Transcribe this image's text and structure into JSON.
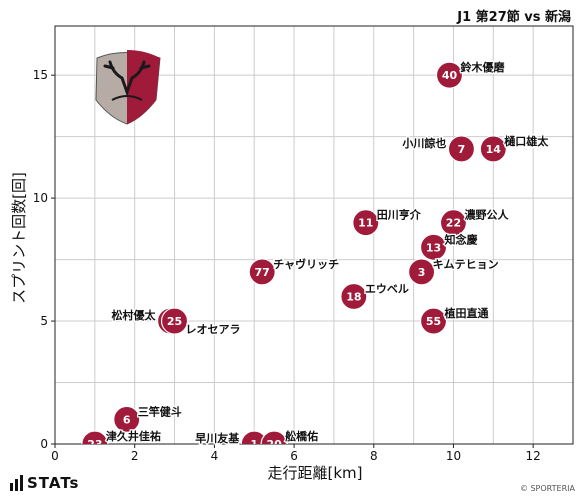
{
  "header": {
    "title": "J1 第27節 vs 新潟"
  },
  "branding": {
    "stats_logo": "STATs",
    "credit": "© SPORTERIA"
  },
  "colors": {
    "marker": "#a01a3a",
    "marker_stroke": "#ffffff",
    "grid": "#cccccc",
    "axis": "#222222"
  },
  "chart_data": {
    "type": "scatter",
    "title": "J1 第27節 vs 新潟",
    "xlabel": "走行距離[km]",
    "ylabel": "スプリント回数[回]",
    "xlim": [
      0,
      13
    ],
    "ylim": [
      0,
      17
    ],
    "xticks": [
      0,
      2,
      4,
      6,
      8,
      10,
      12
    ],
    "yticks": [
      0,
      5,
      10,
      15
    ],
    "grid": true,
    "points": [
      {
        "number": "40",
        "name": "鈴木優磨",
        "x": 9.9,
        "y": 15,
        "label_side": "right"
      },
      {
        "number": "7",
        "name": "小川諒也",
        "x": 10.2,
        "y": 12,
        "label_side": "left"
      },
      {
        "number": "14",
        "name": "樋口雄太",
        "x": 11.0,
        "y": 12,
        "label_side": "right"
      },
      {
        "number": "11",
        "name": "田川亨介",
        "x": 7.8,
        "y": 9,
        "label_side": "right"
      },
      {
        "number": "22",
        "name": "濃野公人",
        "x": 10.0,
        "y": 9,
        "label_side": "right"
      },
      {
        "number": "13",
        "name": "知念慶",
        "x": 9.5,
        "y": 8,
        "label_side": "right"
      },
      {
        "number": "3",
        "name": "キムテヒョン",
        "x": 9.2,
        "y": 7,
        "label_side": "right"
      },
      {
        "number": "77",
        "name": "チャヴリッチ",
        "x": 5.2,
        "y": 7,
        "label_side": "right"
      },
      {
        "number": "18",
        "name": "エウベル",
        "x": 7.5,
        "y": 6,
        "label_side": "right"
      },
      {
        "number": "55",
        "name": "植田直通",
        "x": 9.5,
        "y": 5,
        "label_side": "right"
      },
      {
        "number": "29",
        "name": "松村優太",
        "x": 2.9,
        "y": 5,
        "label_side": "left"
      },
      {
        "number": "25",
        "name": "レオセアラ",
        "x": 3.0,
        "y": 5,
        "label_side": "right-low"
      },
      {
        "number": "6",
        "name": "三竿健斗",
        "x": 1.8,
        "y": 1,
        "label_side": "right"
      },
      {
        "number": "23",
        "name": "津久井佳祐",
        "x": 1.0,
        "y": 0,
        "label_side": "right"
      },
      {
        "number": "1",
        "name": "早川友基",
        "x": 5.0,
        "y": 0,
        "label_side": "left"
      },
      {
        "number": "20",
        "name": "舩橋佑",
        "x": 5.5,
        "y": 0,
        "label_side": "right"
      }
    ]
  }
}
